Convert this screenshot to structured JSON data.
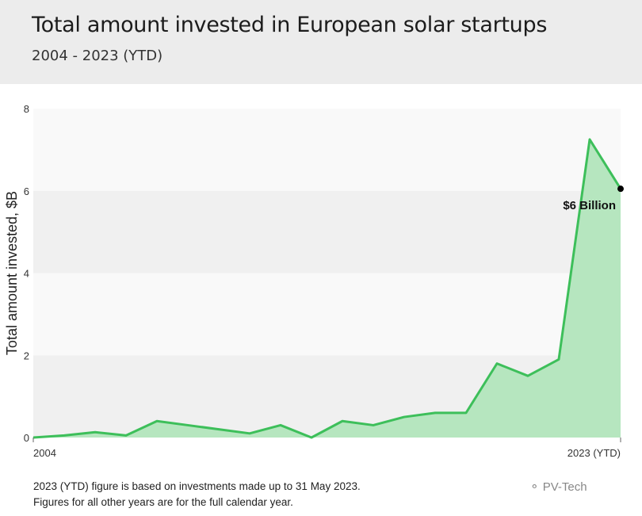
{
  "header": {
    "title": "Total amount invested in European solar startups",
    "subtitle": "2004 - 2023 (YTD)"
  },
  "footnotes": [
    "2023 (YTD) figure is based on investments made up to 31 May 2023.",
    "Figures for all other years are for the full calendar year."
  ],
  "watermark": "PV-Tech",
  "colors": {
    "line": "#3dbf5a",
    "fill": "#b6e6bf",
    "band_dark": "#f0f0f0",
    "band_light": "#f9f9f9"
  },
  "chart_data": {
    "type": "area",
    "title": "Total amount invested in European solar startups",
    "subtitle": "2004 - 2023 (YTD)",
    "xlabel": "",
    "ylabel": "Total amount invested, $B",
    "x": [
      2004,
      2005,
      2006,
      2007,
      2008,
      2009,
      2010,
      2011,
      2012,
      2013,
      2014,
      2015,
      2016,
      2017,
      2018,
      2019,
      2020,
      2021,
      2022,
      2023
    ],
    "values": [
      0.0,
      0.05,
      0.13,
      0.05,
      0.4,
      0.3,
      0.2,
      0.1,
      0.3,
      0.0,
      0.4,
      0.3,
      0.5,
      0.6,
      0.6,
      1.8,
      1.5,
      1.9,
      7.25,
      6.05
    ],
    "ylim": [
      0,
      8
    ],
    "yticks": [
      "0",
      "2",
      "4",
      "6",
      "8"
    ],
    "xtick_labels": [
      "2004",
      "2023 (YTD)"
    ],
    "annotation": "$6 Billion",
    "grid": "alternating horizontal bands",
    "legend": "none"
  }
}
